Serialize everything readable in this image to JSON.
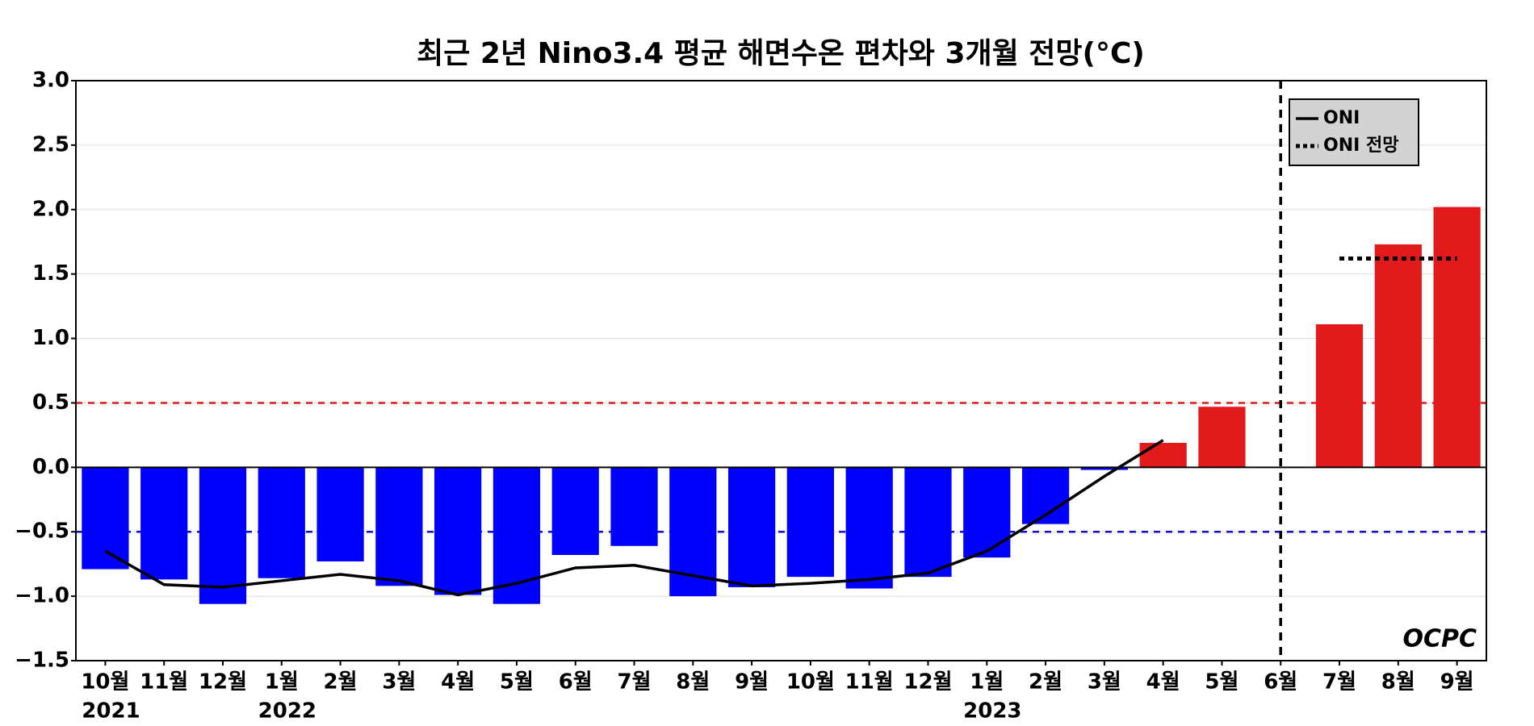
{
  "chart_data": {
    "type": "bar",
    "title": "최근 2년 Nino3.4 평균 해면수온 편차와 3개월 전망(°C)",
    "categories": [
      "10월",
      "11월",
      "12월",
      "1월",
      "2월",
      "3월",
      "4월",
      "5월",
      "6월",
      "7월",
      "8월",
      "9월",
      "10월",
      "11월",
      "12월",
      "1월",
      "2월",
      "3월",
      "4월",
      "5월",
      "6월",
      "7월",
      "8월",
      "9월"
    ],
    "values": [
      -0.79,
      -0.87,
      -1.06,
      -0.86,
      -0.73,
      -0.92,
      -0.99,
      -1.06,
      -0.68,
      -0.61,
      -1.0,
      -0.93,
      -0.85,
      -0.94,
      -0.85,
      -0.7,
      -0.44,
      -0.02,
      0.19,
      0.47,
      null,
      1.11,
      1.73,
      2.02
    ],
    "bar_colors": {
      "negative": "#0000ff",
      "positive": "#e31a1c"
    },
    "series": [
      {
        "name": "ONI",
        "color": "#000000",
        "style": "solid",
        "values": [
          -0.65,
          -0.91,
          -0.93,
          -0.88,
          -0.83,
          -0.88,
          -0.99,
          -0.9,
          -0.78,
          -0.76,
          -0.84,
          -0.92,
          -0.9,
          -0.87,
          -0.82,
          -0.65,
          -0.37,
          -0.07,
          0.21,
          null,
          null,
          null,
          null,
          null
        ]
      },
      {
        "name": "ONI 전망",
        "color": "#000000",
        "style": "dotted",
        "values": [
          null,
          null,
          null,
          null,
          null,
          null,
          null,
          null,
          null,
          null,
          null,
          null,
          null,
          null,
          null,
          null,
          null,
          null,
          null,
          null,
          null,
          1.62,
          1.62,
          1.62
        ]
      }
    ],
    "reference_lines": [
      {
        "value": 0.5,
        "color": "#e31a1c"
      },
      {
        "value": -0.5,
        "color": "#1010cc"
      }
    ],
    "divider_at": 20,
    "year_labels": [
      {
        "label": "2021",
        "category_index": 0
      },
      {
        "label": "2022",
        "category_index": 3
      },
      {
        "label": "2023",
        "category_index": 15
      }
    ],
    "logo": "OCPC",
    "ylim": [
      -1.5,
      3.0
    ],
    "yticks": [
      {
        "value": -1.5,
        "label": "−1.5"
      },
      {
        "value": -1.0,
        "label": "−1.0"
      },
      {
        "value": -0.5,
        "label": "−0.5"
      },
      {
        "value": 0,
        "label": "0.0"
      },
      {
        "value": 0.5,
        "label": "0.5"
      },
      {
        "value": 1.0,
        "label": "1.0"
      },
      {
        "value": 1.5,
        "label": "1.5"
      },
      {
        "value": 2.0,
        "label": "2.0"
      },
      {
        "value": 2.5,
        "label": "2.5"
      },
      {
        "value": 3.0,
        "label": "3.0"
      }
    ],
    "grid": true,
    "legend": "upper right"
  }
}
